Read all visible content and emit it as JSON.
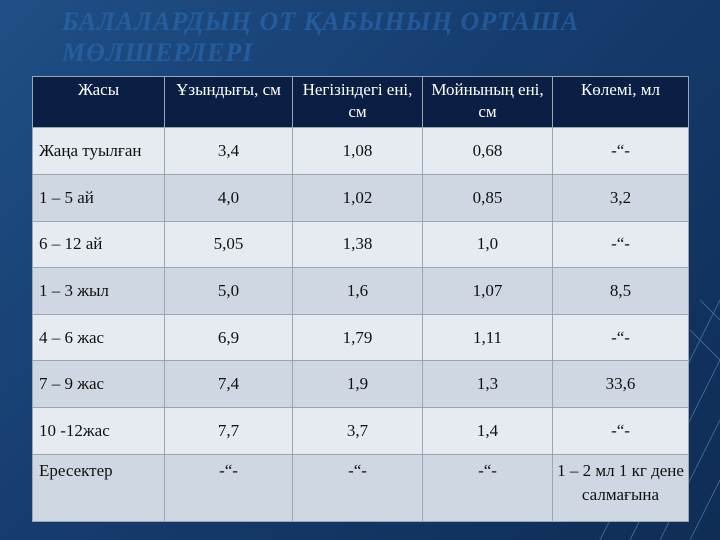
{
  "title": "БАЛАЛАРДЫҢ ОТ ҚАБЫНЫҢ ОРТАША МӨЛШЕРЛЕРІ",
  "table": {
    "headers": [
      "Жасы",
      "Ұзындығы, см",
      "Негізіндегі ені, см",
      "Мойнының ені, см",
      "Көлемі, мл"
    ],
    "rows": [
      [
        "Жаңа туылған",
        "3,4",
        "1,08",
        "0,68",
        "-“-"
      ],
      [
        "1 – 5 ай",
        "4,0",
        "1,02",
        "0,85",
        "3,2"
      ],
      [
        "6 – 12 ай",
        "5,05",
        "1,38",
        "1,0",
        "-“-"
      ],
      [
        "1 – 3 жыл",
        "5,0",
        "1,6",
        "1,07",
        "8,5"
      ],
      [
        "4 – 6 жас",
        "6,9",
        "1,79",
        "1,11",
        "-“-"
      ],
      [
        "7 – 9 жас",
        "7,4",
        "1,9",
        "1,3",
        "33,6"
      ],
      [
        "10 -12жас",
        "7,7",
        "3,7",
        "1,4",
        "-“-"
      ],
      [
        "Ересектер",
        "-“-",
        "-“-",
        "-“-",
        "1 – 2 мл 1 кг дене салмағына"
      ]
    ]
  },
  "colors": {
    "background": "#1f4f86",
    "header_bg": "#0b1f44",
    "row_light": "#e6ebf1",
    "row_dark": "#cfd8e2",
    "title": "#2d6fb8"
  }
}
